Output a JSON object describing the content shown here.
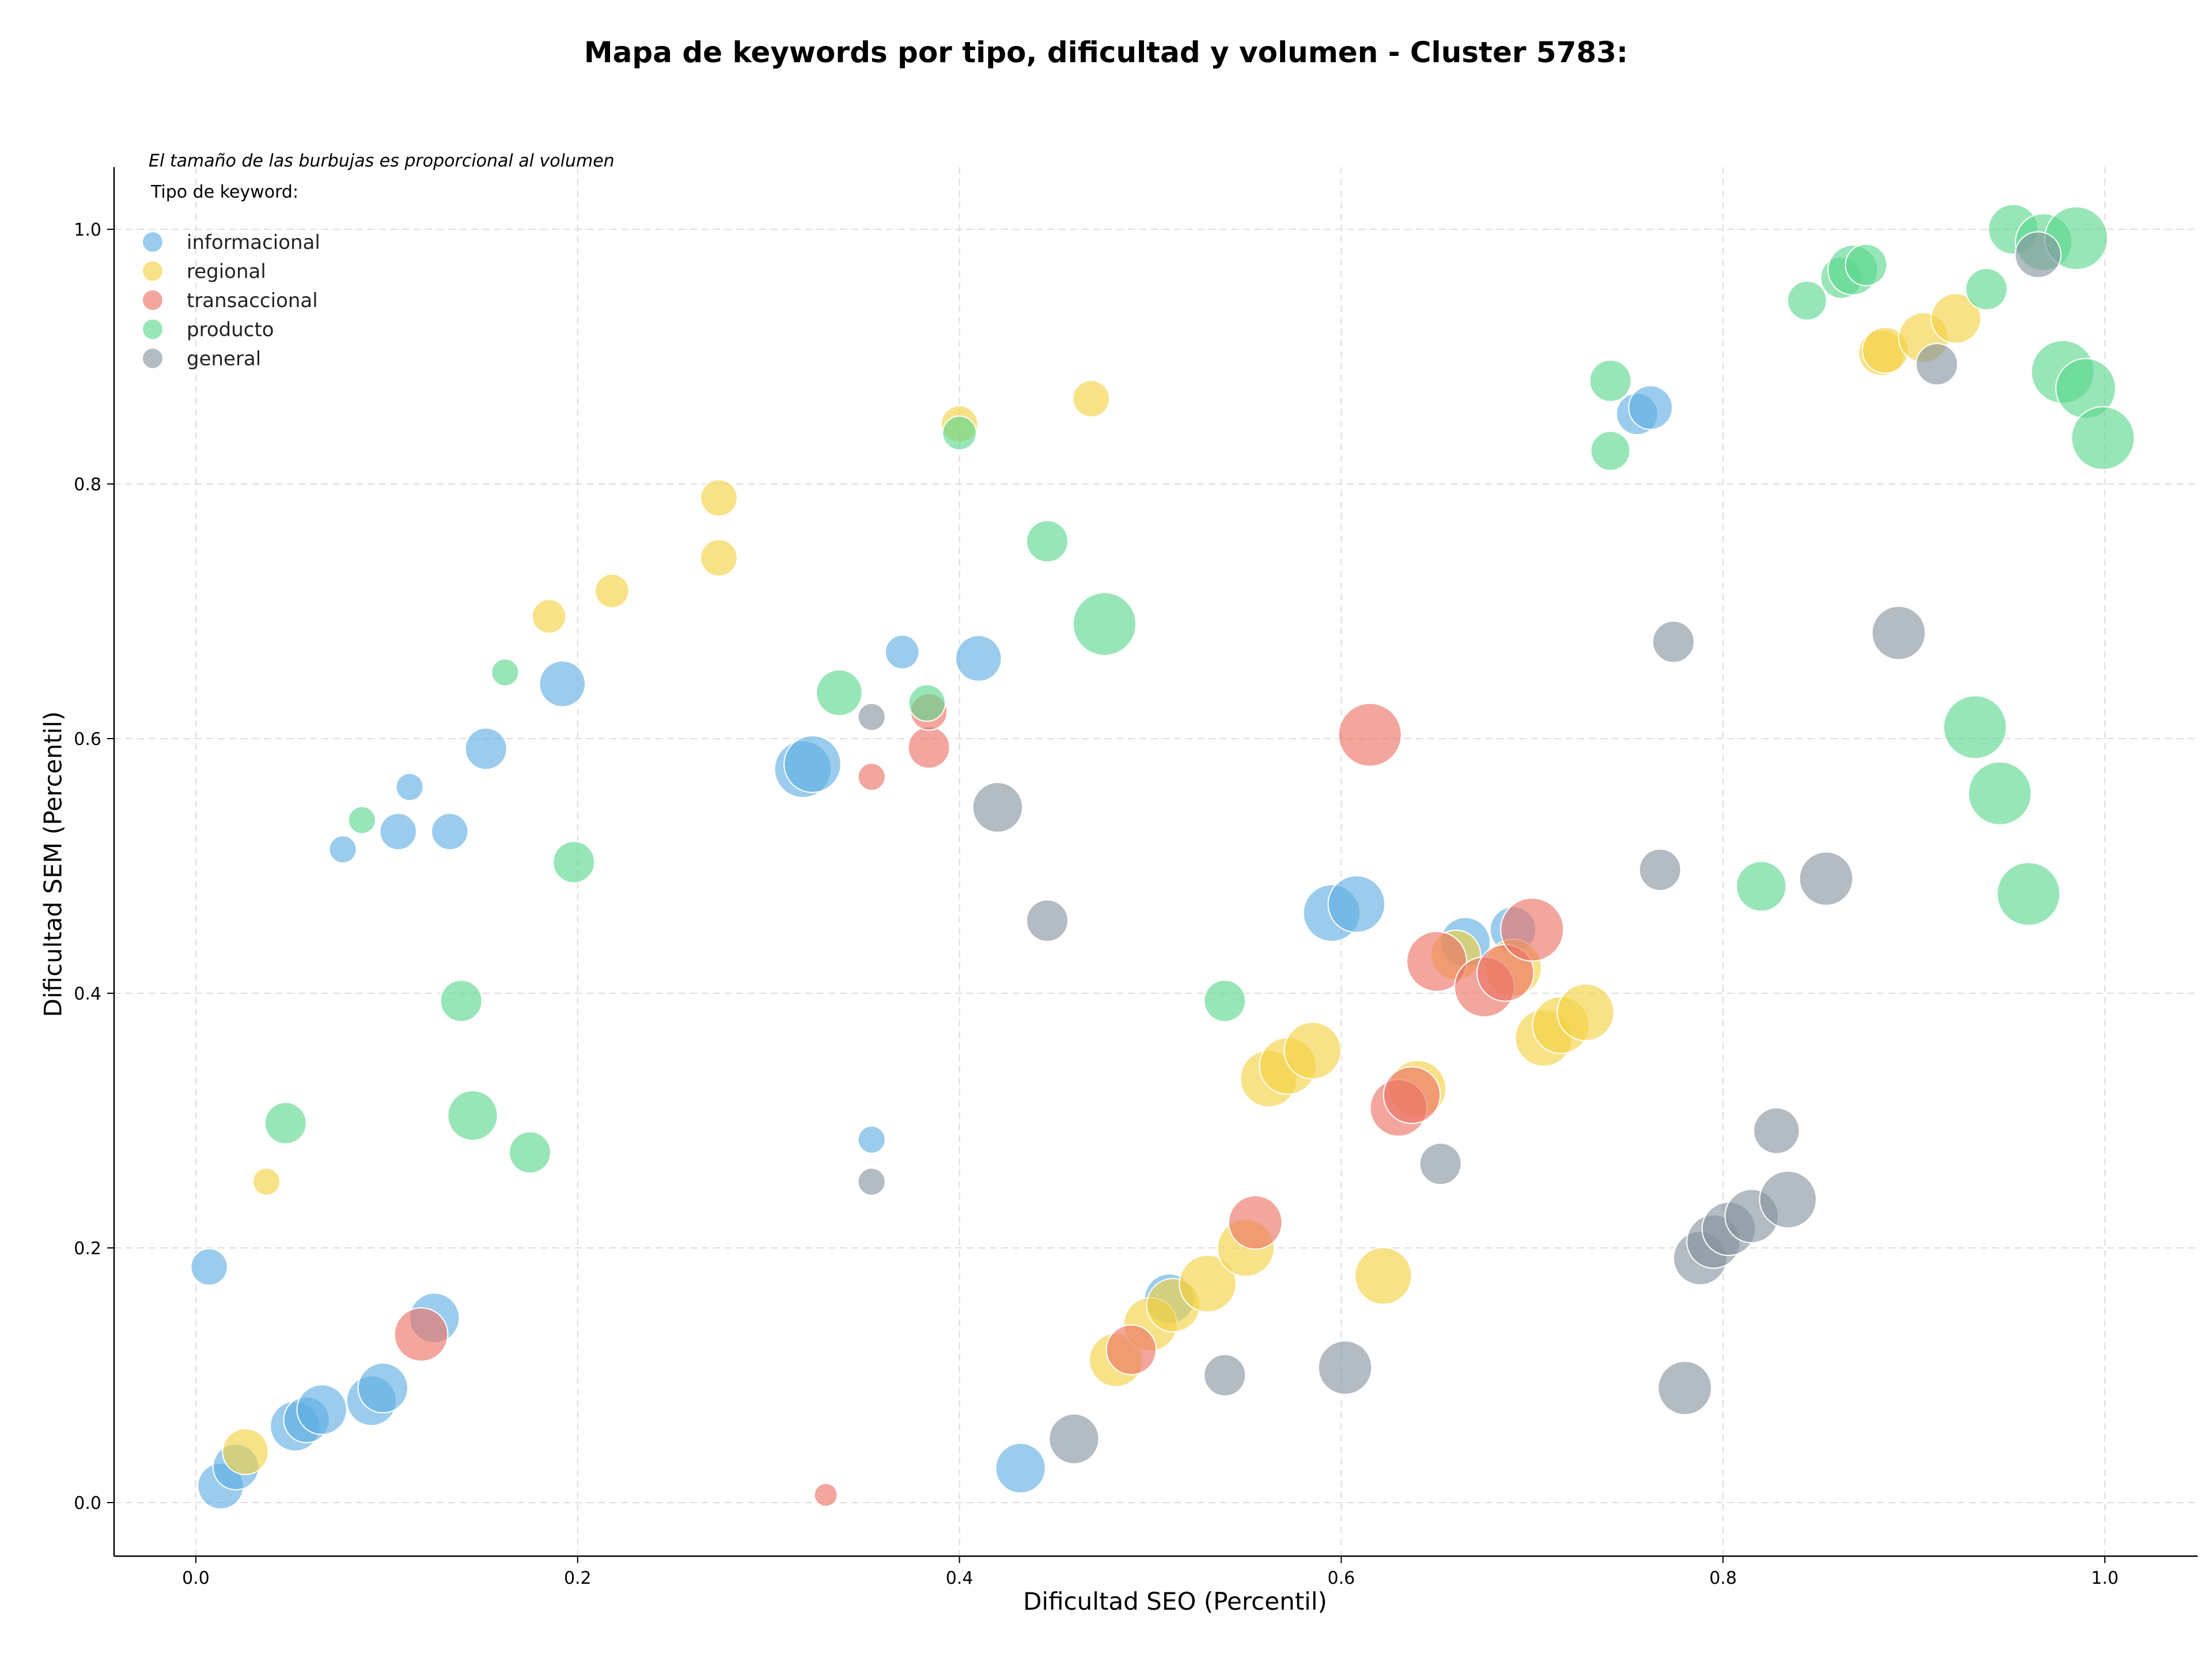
{
  "chart_data": {
    "type": "scatter",
    "title": "Mapa de keywords por tipo, dificultad y volumen - Cluster 5783:",
    "xlabel": "Dificultad SEO (Percentil)",
    "ylabel": "Dificultad SEM (Percentil)",
    "xlim": [
      -0.04,
      1.05
    ],
    "ylim": [
      -0.04,
      1.05
    ],
    "xticks": [
      "0.0",
      "0.2",
      "0.4",
      "0.6",
      "0.8",
      "1.0"
    ],
    "yticks": [
      "0.0",
      "0.2",
      "0.4",
      "0.6",
      "0.8",
      "1.0"
    ],
    "grid": true,
    "legend_position": "top-left",
    "note": "El tamaño de las burbujas es proporcional al volumen",
    "legend_title": "Tipo de keyword:",
    "series": [
      {
        "name": "informacional",
        "color": "#5DADE2",
        "points": [
          [
            0.007,
            0.185,
            3
          ],
          [
            0.013,
            0.013,
            5
          ],
          [
            0.021,
            0.028,
            5
          ],
          [
            0.052,
            0.06,
            6
          ],
          [
            0.058,
            0.065,
            5
          ],
          [
            0.066,
            0.073,
            6
          ],
          [
            0.092,
            0.08,
            6
          ],
          [
            0.098,
            0.09,
            6
          ],
          [
            0.125,
            0.145,
            6
          ],
          [
            0.077,
            0.513,
            1.5
          ],
          [
            0.106,
            0.527,
            3
          ],
          [
            0.112,
            0.562,
            1.5
          ],
          [
            0.133,
            0.527,
            3
          ],
          [
            0.152,
            0.592,
            4
          ],
          [
            0.192,
            0.643,
            5
          ],
          [
            0.318,
            0.576,
            8
          ],
          [
            0.323,
            0.58,
            8
          ],
          [
            0.37,
            0.668,
            2.5
          ],
          [
            0.41,
            0.663,
            5
          ],
          [
            0.354,
            0.285,
            1.5
          ],
          [
            0.595,
            0.463,
            8
          ],
          [
            0.608,
            0.47,
            8
          ],
          [
            0.665,
            0.44,
            6
          ],
          [
            0.69,
            0.45,
            5
          ],
          [
            0.51,
            0.16,
            6
          ],
          [
            0.432,
            0.027,
            6
          ],
          [
            0.755,
            0.855,
            4
          ],
          [
            0.762,
            0.86,
            4.5
          ]
        ]
      },
      {
        "name": "regional",
        "color": "#F4D03F",
        "points": [
          [
            0.026,
            0.04,
            5
          ],
          [
            0.037,
            0.252,
            1.5
          ],
          [
            0.185,
            0.696,
            2.5
          ],
          [
            0.218,
            0.716,
            2.5
          ],
          [
            0.274,
            0.789,
            3
          ],
          [
            0.274,
            0.742,
            3
          ],
          [
            0.4,
            0.847,
            3
          ],
          [
            0.469,
            0.867,
            3
          ],
          [
            0.562,
            0.333,
            8
          ],
          [
            0.572,
            0.343,
            8
          ],
          [
            0.585,
            0.355,
            8
          ],
          [
            0.622,
            0.178,
            8
          ],
          [
            0.64,
            0.325,
            8
          ],
          [
            0.66,
            0.43,
            6
          ],
          [
            0.69,
            0.42,
            8
          ],
          [
            0.706,
            0.365,
            8
          ],
          [
            0.715,
            0.375,
            8
          ],
          [
            0.728,
            0.385,
            8
          ],
          [
            0.482,
            0.112,
            7
          ],
          [
            0.5,
            0.14,
            7
          ],
          [
            0.512,
            0.155,
            7
          ],
          [
            0.53,
            0.172,
            8
          ],
          [
            0.55,
            0.2,
            8
          ],
          [
            0.883,
            0.903,
            5
          ],
          [
            0.885,
            0.905,
            5
          ],
          [
            0.905,
            0.915,
            6
          ],
          [
            0.922,
            0.93,
            6
          ]
        ]
      },
      {
        "name": "transaccional",
        "color": "#EC7063",
        "points": [
          [
            0.118,
            0.132,
            7
          ],
          [
            0.354,
            0.57,
            1.5
          ],
          [
            0.384,
            0.593,
            4
          ],
          [
            0.384,
            0.621,
            3
          ],
          [
            0.33,
            0.006,
            1
          ],
          [
            0.555,
            0.22,
            7
          ],
          [
            0.49,
            0.12,
            6
          ],
          [
            0.615,
            0.603,
            10
          ],
          [
            0.63,
            0.31,
            8
          ],
          [
            0.637,
            0.32,
            8
          ],
          [
            0.65,
            0.425,
            9
          ],
          [
            0.675,
            0.405,
            9
          ],
          [
            0.686,
            0.416,
            8
          ],
          [
            0.7,
            0.45,
            10
          ]
        ]
      },
      {
        "name": "producto",
        "color": "#58D68D",
        "points": [
          [
            0.047,
            0.298,
            4
          ],
          [
            0.087,
            0.536,
            1.5
          ],
          [
            0.139,
            0.394,
            4
          ],
          [
            0.145,
            0.304,
            6
          ],
          [
            0.175,
            0.275,
            4
          ],
          [
            0.162,
            0.652,
            1.5
          ],
          [
            0.198,
            0.503,
            4
          ],
          [
            0.337,
            0.636,
            5
          ],
          [
            0.383,
            0.628,
            3
          ],
          [
            0.4,
            0.84,
            2.5
          ],
          [
            0.446,
            0.755,
            4
          ],
          [
            0.476,
            0.69,
            10
          ],
          [
            0.539,
            0.394,
            4
          ],
          [
            0.741,
            0.881,
            4
          ],
          [
            0.741,
            0.826,
            3.5
          ],
          [
            0.82,
            0.484,
            6
          ],
          [
            0.844,
            0.944,
            3.5
          ],
          [
            0.862,
            0.962,
            4
          ],
          [
            0.868,
            0.968,
            6
          ],
          [
            0.875,
            0.972,
            4
          ],
          [
            0.938,
            0.953,
            4
          ],
          [
            0.952,
            1.0,
            6
          ],
          [
            0.968,
            0.99,
            8
          ],
          [
            0.985,
            0.993,
            10
          ],
          [
            0.978,
            0.888,
            10
          ],
          [
            0.99,
            0.875,
            9
          ],
          [
            0.999,
            0.836,
            10
          ],
          [
            0.932,
            0.609,
            10
          ],
          [
            0.945,
            0.557,
            10
          ],
          [
            0.96,
            0.478,
            10
          ]
        ]
      },
      {
        "name": "general",
        "color": "#85929E",
        "points": [
          [
            0.354,
            0.617,
            1.5
          ],
          [
            0.354,
            0.252,
            1.5
          ],
          [
            0.42,
            0.546,
            6
          ],
          [
            0.446,
            0.457,
            4
          ],
          [
            0.46,
            0.05,
            6
          ],
          [
            0.539,
            0.1,
            4
          ],
          [
            0.602,
            0.106,
            7
          ],
          [
            0.652,
            0.266,
            4
          ],
          [
            0.767,
            0.497,
            4
          ],
          [
            0.774,
            0.676,
            4
          ],
          [
            0.78,
            0.09,
            7
          ],
          [
            0.788,
            0.192,
            7
          ],
          [
            0.795,
            0.205,
            7
          ],
          [
            0.803,
            0.215,
            7
          ],
          [
            0.815,
            0.225,
            7
          ],
          [
            0.828,
            0.292,
            5
          ],
          [
            0.834,
            0.238,
            8
          ],
          [
            0.854,
            0.49,
            7
          ],
          [
            0.892,
            0.683,
            7
          ],
          [
            0.912,
            0.894,
            4
          ],
          [
            0.965,
            0.98,
            5
          ]
        ]
      }
    ]
  }
}
